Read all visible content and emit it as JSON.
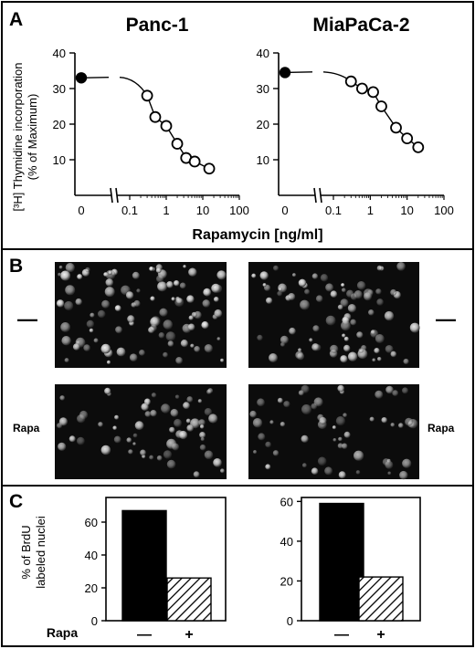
{
  "panel_a": {
    "label": "A",
    "y_axis_title_line1": "[³H] Thymidine incorporation",
    "y_axis_title_line2": "(% of Maximum)",
    "x_axis_title": "Rapamycin [ng/ml]"
  },
  "panel_b": {
    "label": "B",
    "row_control_left": "—",
    "row_control_right": "—",
    "row_rapa_left": "Rapa",
    "row_rapa_right": "Rapa"
  },
  "panel_c": {
    "label": "C",
    "y_axis_title_line1": "% of BrdU",
    "y_axis_title_line2": "labeled nuclei",
    "row_label": "Rapa",
    "categories": [
      "—",
      "+"
    ]
  },
  "chart_data": [
    {
      "type": "line",
      "title": "Panc-1",
      "xlabel": "Rapamycin [ng/ml]",
      "ylabel": "[³H] Thymidine incorporation (% of Maximum)",
      "x_scale": "log",
      "x_ticks": [
        "0",
        "0.1",
        "1",
        "10",
        "100"
      ],
      "y_ticks": [
        "10",
        "20",
        "30",
        "40"
      ],
      "ylim": [
        0,
        40
      ],
      "control_point": {
        "x": 0,
        "y": 33,
        "filled": true
      },
      "points": [
        {
          "x": 0.3,
          "y": 28
        },
        {
          "x": 0.5,
          "y": 22
        },
        {
          "x": 1,
          "y": 19.5
        },
        {
          "x": 2,
          "y": 14.5
        },
        {
          "x": 3.5,
          "y": 10.5
        },
        {
          "x": 6,
          "y": 9.5
        },
        {
          "x": 15,
          "y": 7.5
        }
      ]
    },
    {
      "type": "line",
      "title": "MiaPaCa-2",
      "xlabel": "Rapamycin [ng/ml]",
      "ylabel": "",
      "x_scale": "log",
      "x_ticks": [
        "0",
        "0.1",
        "1",
        "10",
        "100"
      ],
      "y_ticks": [
        "10",
        "20",
        "30",
        "40"
      ],
      "ylim": [
        0,
        40
      ],
      "control_point": {
        "x": 0,
        "y": 34.5,
        "filled": true
      },
      "points": [
        {
          "x": 0.3,
          "y": 32
        },
        {
          "x": 0.6,
          "y": 30
        },
        {
          "x": 1.2,
          "y": 29
        },
        {
          "x": 2,
          "y": 25
        },
        {
          "x": 5,
          "y": 19
        },
        {
          "x": 10,
          "y": 16
        },
        {
          "x": 20,
          "y": 13.5
        }
      ]
    },
    {
      "type": "bar",
      "title": "",
      "categories": [
        "—",
        "+"
      ],
      "values": [
        67,
        26
      ],
      "y_ticks": [
        "0",
        "20",
        "40",
        "60"
      ],
      "ylim": [
        0,
        75
      ],
      "bar_fills": [
        "solid-black",
        "hatched"
      ]
    },
    {
      "type": "bar",
      "title": "",
      "categories": [
        "—",
        "+"
      ],
      "values": [
        59,
        22
      ],
      "y_ticks": [
        "0",
        "20",
        "40",
        "60"
      ],
      "ylim": [
        0,
        62
      ],
      "bar_fills": [
        "solid-black",
        "hatched"
      ]
    }
  ]
}
